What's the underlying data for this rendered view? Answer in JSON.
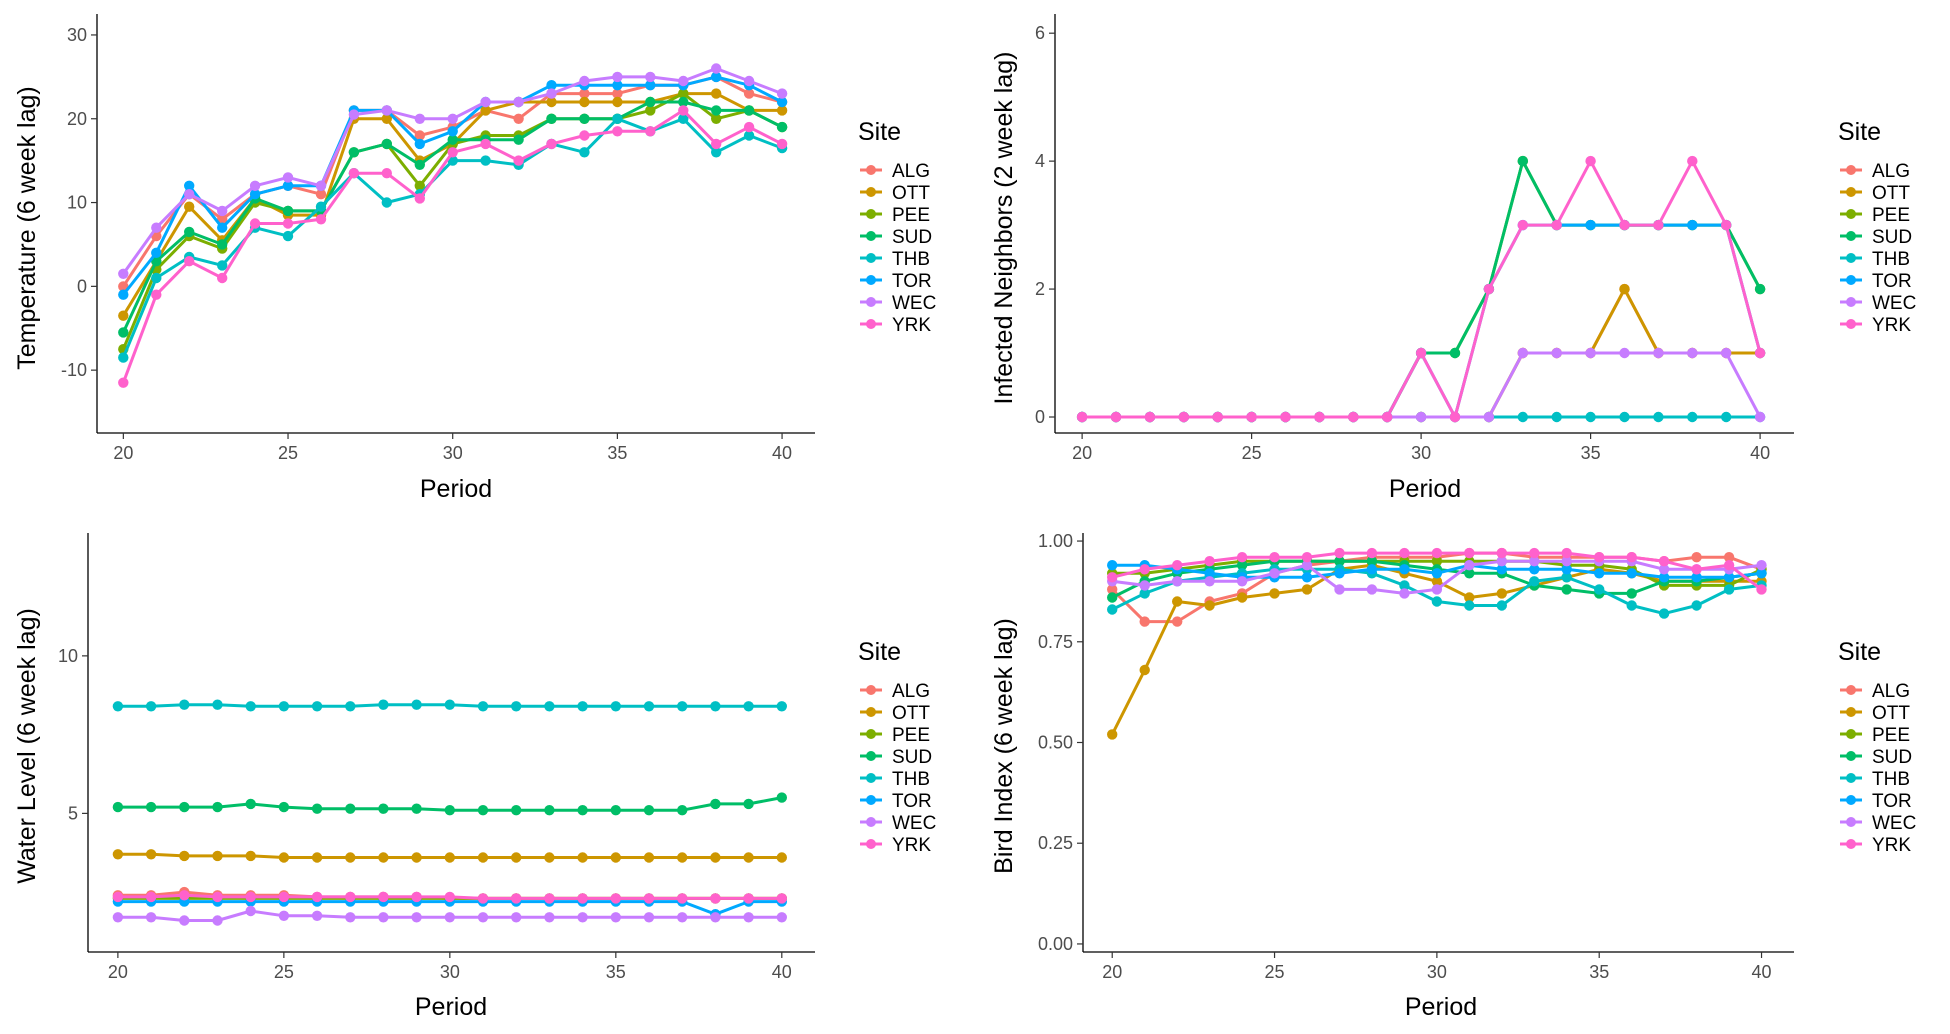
{
  "legend_title": "Site",
  "sites": [
    "ALG",
    "OTT",
    "PEE",
    "SUD",
    "THB",
    "TOR",
    "WEC",
    "YRK"
  ],
  "colors": {
    "ALG": "#F8766D",
    "OTT": "#CD9600",
    "PEE": "#7CAE00",
    "SUD": "#00BE67",
    "THB": "#00BFC4",
    "TOR": "#00A9FF",
    "WEC": "#C77CFF",
    "YRK": "#FF61CC"
  },
  "periods": [
    20,
    21,
    22,
    23,
    24,
    25,
    26,
    27,
    28,
    29,
    30,
    31,
    32,
    33,
    34,
    35,
    36,
    37,
    38,
    39,
    40
  ],
  "chart_data": [
    {
      "type": "line",
      "xlabel": "Period",
      "ylabel": "Temperature (6 week lag)",
      "xlim": [
        19.2,
        41
      ],
      "ylim": [
        -17.5,
        32.5
      ],
      "xticks": [
        20,
        25,
        30,
        35,
        40
      ],
      "yticks": [
        -10,
        0,
        10,
        20,
        30
      ],
      "series": [
        {
          "name": "ALG",
          "values": [
            0,
            6,
            11,
            8,
            11,
            12,
            11,
            21,
            21,
            18,
            19,
            21,
            20,
            23,
            23,
            23,
            24,
            24,
            25,
            23,
            22
          ]
        },
        {
          "name": "OTT",
          "values": [
            -3.5,
            3,
            9.5,
            5.5,
            10.5,
            8.5,
            8.5,
            20,
            20,
            15,
            17,
            21,
            22,
            22,
            22,
            22,
            22,
            23,
            23,
            21,
            21
          ]
        },
        {
          "name": "PEE",
          "values": [
            -7.5,
            2,
            6,
            4.5,
            10,
            9,
            9,
            16,
            17,
            12,
            17,
            18,
            18,
            20,
            20,
            20,
            21,
            23,
            20,
            21,
            19
          ]
        },
        {
          "name": "SUD",
          "values": [
            -5.5,
            3,
            6.5,
            5,
            10.5,
            9,
            9,
            16,
            17,
            14.5,
            17.5,
            17.5,
            17.5,
            20,
            20,
            20,
            22,
            22,
            21,
            21,
            19
          ]
        },
        {
          "name": "THB",
          "values": [
            -8.5,
            1,
            3.5,
            2.5,
            7,
            6,
            9.5,
            13.5,
            10,
            11,
            15,
            15,
            14.5,
            17,
            16,
            20,
            18.5,
            20,
            16,
            18,
            16.5
          ]
        },
        {
          "name": "TOR",
          "values": [
            -1,
            4,
            12,
            7,
            11,
            12,
            12,
            21,
            21,
            17,
            18.5,
            22,
            22,
            24,
            24,
            24,
            24,
            24,
            25,
            24,
            22
          ]
        },
        {
          "name": "WEC",
          "values": [
            1.5,
            7,
            11,
            9,
            12,
            13,
            12,
            20.5,
            21,
            20,
            20,
            22,
            22,
            23,
            24.5,
            25,
            25,
            24.5,
            26,
            24.5,
            23
          ]
        },
        {
          "name": "YRK",
          "values": [
            -11.5,
            -1,
            3,
            1,
            7.5,
            7.5,
            8,
            13.5,
            13.5,
            10.5,
            16,
            17,
            15,
            17,
            18,
            18.5,
            18.5,
            21,
            17,
            19,
            17
          ]
        }
      ]
    },
    {
      "type": "line",
      "xlabel": "Period",
      "ylabel": "Infected Neighbors (2 week lag)",
      "xlim": [
        19.2,
        41
      ],
      "ylim": [
        -0.25,
        6.3
      ],
      "xticks": [
        20,
        25,
        30,
        35,
        40
      ],
      "yticks": [
        0,
        2,
        4,
        6
      ],
      "series": [
        {
          "name": "ALG",
          "values": [
            0,
            0,
            0,
            0,
            0,
            0,
            0,
            0,
            0,
            0,
            0,
            0,
            0,
            1,
            1,
            1,
            2,
            1,
            1,
            1,
            1
          ]
        },
        {
          "name": "OTT",
          "values": [
            0,
            0,
            0,
            0,
            0,
            0,
            0,
            0,
            0,
            0,
            0,
            0,
            0,
            1,
            1,
            1,
            2,
            1,
            1,
            1,
            1
          ]
        },
        {
          "name": "PEE",
          "values": [
            0,
            0,
            0,
            0,
            0,
            0,
            0,
            0,
            0,
            0,
            1,
            1,
            2,
            4,
            3,
            3,
            3,
            3,
            3,
            3,
            2
          ]
        },
        {
          "name": "SUD",
          "values": [
            0,
            0,
            0,
            0,
            0,
            0,
            0,
            0,
            0,
            0,
            1,
            1,
            2,
            4,
            3,
            3,
            3,
            3,
            3,
            3,
            2
          ]
        },
        {
          "name": "THB",
          "values": [
            0,
            0,
            0,
            0,
            0,
            0,
            0,
            0,
            0,
            0,
            0,
            0,
            0,
            0,
            0,
            0,
            0,
            0,
            0,
            0,
            0
          ]
        },
        {
          "name": "TOR",
          "values": [
            0,
            0,
            0,
            0,
            0,
            0,
            0,
            0,
            0,
            0,
            1,
            0,
            2,
            3,
            3,
            3,
            3,
            3,
            3,
            3,
            1
          ]
        },
        {
          "name": "WEC",
          "values": [
            0,
            0,
            0,
            0,
            0,
            0,
            0,
            0,
            0,
            0,
            0,
            0,
            0,
            1,
            1,
            1,
            1,
            1,
            1,
            1,
            0
          ]
        },
        {
          "name": "YRK",
          "values": [
            0,
            0,
            0,
            0,
            0,
            0,
            0,
            0,
            0,
            0,
            1,
            0,
            2,
            3,
            3,
            4,
            3,
            3,
            4,
            3,
            1
          ]
        }
      ]
    },
    {
      "type": "line",
      "xlabel": "Period",
      "ylabel": "Water Level (6 week lag)",
      "xlim": [
        19.1,
        41
      ],
      "ylim": [
        0.6,
        13.9
      ],
      "xticks": [
        20,
        25,
        30,
        35,
        40
      ],
      "yticks": [
        5,
        10
      ],
      "series": [
        {
          "name": "ALG",
          "values": [
            2.4,
            2.4,
            2.5,
            2.4,
            2.4,
            2.4,
            2.35,
            2.35,
            2.35,
            2.35,
            2.3,
            2.3,
            2.3,
            2.3,
            2.3,
            2.3,
            2.3,
            2.3,
            2.3,
            2.3,
            2.3
          ]
        },
        {
          "name": "OTT",
          "values": [
            3.7,
            3.7,
            3.65,
            3.65,
            3.65,
            3.6,
            3.6,
            3.6,
            3.6,
            3.6,
            3.6,
            3.6,
            3.6,
            3.6,
            3.6,
            3.6,
            3.6,
            3.6,
            3.6,
            3.6,
            3.6
          ]
        },
        {
          "name": "PEE",
          "values": [
            2.3,
            2.3,
            2.3,
            2.3,
            2.3,
            2.3,
            2.3,
            2.3,
            2.3,
            2.3,
            2.3,
            2.3,
            2.3,
            2.3,
            2.3,
            2.3,
            2.3,
            2.3,
            2.3,
            2.3,
            2.3
          ]
        },
        {
          "name": "SUD",
          "values": [
            5.2,
            5.2,
            5.2,
            5.2,
            5.3,
            5.2,
            5.15,
            5.15,
            5.15,
            5.15,
            5.1,
            5.1,
            5.1,
            5.1,
            5.1,
            5.1,
            5.1,
            5.1,
            5.3,
            5.3,
            5.5
          ]
        },
        {
          "name": "THB",
          "values": [
            8.4,
            8.4,
            8.45,
            8.45,
            8.4,
            8.4,
            8.4,
            8.4,
            8.45,
            8.45,
            8.45,
            8.4,
            8.4,
            8.4,
            8.4,
            8.4,
            8.4,
            8.4,
            8.4,
            8.4,
            8.4
          ]
        },
        {
          "name": "TOR",
          "values": [
            2.2,
            2.2,
            2.2,
            2.2,
            2.2,
            2.2,
            2.2,
            2.2,
            2.2,
            2.2,
            2.2,
            2.2,
            2.2,
            2.2,
            2.2,
            2.2,
            2.2,
            2.2,
            1.8,
            2.2,
            2.2
          ]
        },
        {
          "name": "WEC",
          "values": [
            1.7,
            1.7,
            1.6,
            1.6,
            1.9,
            1.75,
            1.75,
            1.7,
            1.7,
            1.7,
            1.7,
            1.7,
            1.7,
            1.7,
            1.7,
            1.7,
            1.7,
            1.7,
            1.7,
            1.7,
            1.7
          ]
        },
        {
          "name": "YRK",
          "values": [
            2.35,
            2.35,
            2.4,
            2.35,
            2.35,
            2.35,
            2.35,
            2.35,
            2.35,
            2.35,
            2.35,
            2.3,
            2.3,
            2.3,
            2.3,
            2.3,
            2.3,
            2.3,
            2.3,
            2.3,
            2.3
          ]
        }
      ]
    },
    {
      "type": "line",
      "xlabel": "Period",
      "ylabel": "Bird Index (6 week lag)",
      "xlim": [
        19.1,
        41
      ],
      "ylim": [
        -0.02,
        1.02
      ],
      "xticks": [
        20,
        25,
        30,
        35,
        40
      ],
      "yticks": [
        0.0,
        0.25,
        0.5,
        0.75,
        1.0
      ],
      "ytick_labels": [
        "0.00",
        "0.25",
        "0.50",
        "0.75",
        "1.00"
      ],
      "series": [
        {
          "name": "ALG",
          "values": [
            0.88,
            0.8,
            0.8,
            0.85,
            0.87,
            0.92,
            0.94,
            0.95,
            0.96,
            0.96,
            0.96,
            0.97,
            0.97,
            0.96,
            0.96,
            0.96,
            0.96,
            0.95,
            0.96,
            0.96,
            0.93
          ]
        },
        {
          "name": "OTT",
          "values": [
            0.52,
            0.68,
            0.85,
            0.84,
            0.86,
            0.87,
            0.88,
            0.93,
            0.94,
            0.92,
            0.9,
            0.86,
            0.87,
            0.89,
            0.91,
            0.93,
            0.92,
            0.9,
            0.9,
            0.9,
            0.9
          ]
        },
        {
          "name": "PEE",
          "values": [
            0.92,
            0.92,
            0.93,
            0.94,
            0.95,
            0.95,
            0.95,
            0.95,
            0.95,
            0.95,
            0.95,
            0.95,
            0.95,
            0.95,
            0.94,
            0.94,
            0.93,
            0.89,
            0.89,
            0.89,
            0.93
          ]
        },
        {
          "name": "SUD",
          "values": [
            0.86,
            0.9,
            0.92,
            0.93,
            0.94,
            0.95,
            0.95,
            0.95,
            0.95,
            0.94,
            0.93,
            0.92,
            0.92,
            0.89,
            0.88,
            0.87,
            0.87,
            0.9,
            0.9,
            0.91,
            0.92
          ]
        },
        {
          "name": "THB",
          "values": [
            0.83,
            0.87,
            0.9,
            0.91,
            0.92,
            0.93,
            0.93,
            0.93,
            0.92,
            0.89,
            0.85,
            0.84,
            0.84,
            0.9,
            0.91,
            0.88,
            0.84,
            0.82,
            0.84,
            0.88,
            0.89
          ]
        },
        {
          "name": "TOR",
          "values": [
            0.94,
            0.94,
            0.93,
            0.92,
            0.91,
            0.91,
            0.91,
            0.92,
            0.93,
            0.93,
            0.92,
            0.94,
            0.93,
            0.93,
            0.93,
            0.92,
            0.92,
            0.91,
            0.91,
            0.91,
            0.92
          ]
        },
        {
          "name": "WEC",
          "values": [
            0.9,
            0.89,
            0.9,
            0.9,
            0.9,
            0.92,
            0.94,
            0.88,
            0.88,
            0.87,
            0.88,
            0.94,
            0.95,
            0.95,
            0.95,
            0.95,
            0.95,
            0.93,
            0.93,
            0.93,
            0.94
          ]
        },
        {
          "name": "YRK",
          "values": [
            0.91,
            0.93,
            0.94,
            0.95,
            0.96,
            0.96,
            0.96,
            0.97,
            0.97,
            0.97,
            0.97,
            0.97,
            0.97,
            0.97,
            0.97,
            0.96,
            0.96,
            0.95,
            0.93,
            0.94,
            0.88
          ]
        }
      ]
    }
  ]
}
